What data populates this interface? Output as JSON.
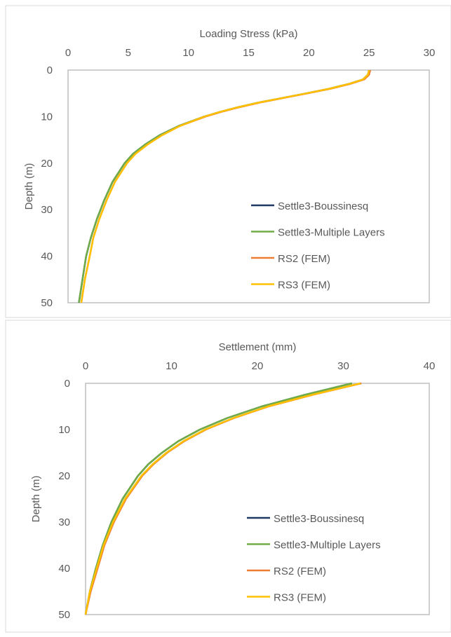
{
  "chart_data": [
    {
      "type": "line",
      "xlabel": "Loading Stress (kPa)",
      "ylabel": "Depth (m)",
      "xlim": [
        0,
        30
      ],
      "ylim": [
        0,
        50
      ],
      "y_inverted": true,
      "x_axis_position": "top",
      "xticks": [
        "0",
        "5",
        "10",
        "15",
        "20",
        "25",
        "30"
      ],
      "yticks": [
        "0",
        "10",
        "20",
        "30",
        "40",
        "50"
      ],
      "grid": false,
      "legend_position": "bottom-right",
      "series": [
        {
          "name": "Settle3-Boussinesq",
          "color": "#1f3864",
          "points": [
            [
              25,
              0
            ],
            [
              24.9,
              1
            ],
            [
              24.5,
              2
            ],
            [
              23.3,
              3
            ],
            [
              21.7,
              4
            ],
            [
              19.8,
              5
            ],
            [
              17.8,
              6
            ],
            [
              15.8,
              7
            ],
            [
              14.1,
              8
            ],
            [
              12.6,
              9
            ],
            [
              11.3,
              10
            ],
            [
              9.2,
              12
            ],
            [
              7.6,
              14
            ],
            [
              6.4,
              16
            ],
            [
              5.4,
              18
            ],
            [
              4.7,
              20
            ],
            [
              3.7,
              24
            ],
            [
              3.0,
              28
            ],
            [
              2.4,
              32
            ],
            [
              1.9,
              36
            ],
            [
              1.5,
              40
            ],
            [
              1.2,
              45
            ],
            [
              0.9,
              50
            ]
          ]
        },
        {
          "name": "Settle3-Multiple Layers",
          "color": "#70ad47",
          "points": [
            [
              25,
              0
            ],
            [
              24.9,
              1
            ],
            [
              24.5,
              2
            ],
            [
              23.3,
              3
            ],
            [
              21.7,
              4
            ],
            [
              19.8,
              5
            ],
            [
              17.8,
              6
            ],
            [
              15.8,
              7
            ],
            [
              14.1,
              8
            ],
            [
              12.6,
              9
            ],
            [
              11.3,
              10
            ],
            [
              9.2,
              12
            ],
            [
              7.6,
              14
            ],
            [
              6.4,
              16
            ],
            [
              5.4,
              18
            ],
            [
              4.7,
              20
            ],
            [
              3.7,
              24
            ],
            [
              3.0,
              28
            ],
            [
              2.4,
              32
            ],
            [
              1.9,
              36
            ],
            [
              1.5,
              40
            ],
            [
              1.2,
              45
            ],
            [
              0.9,
              50
            ]
          ]
        },
        {
          "name": "RS2 (FEM)",
          "color": "#ed7d31",
          "points": [
            [
              25.1,
              0
            ],
            [
              25.0,
              1
            ],
            [
              24.6,
              2
            ],
            [
              23.4,
              3
            ],
            [
              21.8,
              4
            ],
            [
              19.9,
              5
            ],
            [
              17.9,
              6
            ],
            [
              15.9,
              7
            ],
            [
              14.2,
              8
            ],
            [
              12.7,
              9
            ],
            [
              11.4,
              10
            ],
            [
              9.3,
              12
            ],
            [
              7.8,
              14
            ],
            [
              6.6,
              16
            ],
            [
              5.6,
              18
            ],
            [
              4.9,
              20
            ],
            [
              3.9,
              24
            ],
            [
              3.2,
              28
            ],
            [
              2.6,
              32
            ],
            [
              2.1,
              36
            ],
            [
              1.8,
              40
            ],
            [
              1.4,
              45
            ],
            [
              1.1,
              50
            ]
          ]
        },
        {
          "name": "RS3 (FEM)",
          "color": "#ffc000",
          "points": [
            [
              25,
              0
            ],
            [
              24.9,
              1
            ],
            [
              24.5,
              2
            ],
            [
              23.3,
              3
            ],
            [
              21.7,
              4
            ],
            [
              19.8,
              5
            ],
            [
              17.8,
              6
            ],
            [
              15.8,
              7
            ],
            [
              14.1,
              8
            ],
            [
              12.6,
              9
            ],
            [
              11.3,
              10
            ],
            [
              9.3,
              12
            ],
            [
              7.8,
              14
            ],
            [
              6.6,
              16
            ],
            [
              5.6,
              18
            ],
            [
              4.9,
              20
            ],
            [
              3.9,
              24
            ],
            [
              3.2,
              28
            ],
            [
              2.6,
              32
            ],
            [
              2.1,
              36
            ],
            [
              1.8,
              40
            ],
            [
              1.4,
              45
            ],
            [
              1.1,
              50
            ]
          ]
        }
      ]
    },
    {
      "type": "line",
      "xlabel": "Settlement (mm)",
      "ylabel": "Depth (m)",
      "xlim": [
        0,
        40
      ],
      "ylim": [
        0,
        50
      ],
      "y_inverted": true,
      "x_axis_position": "top",
      "xticks": [
        "0",
        "10",
        "20",
        "30",
        "40"
      ],
      "yticks": [
        "0",
        "10",
        "20",
        "30",
        "40",
        "50"
      ],
      "grid": false,
      "legend_position": "bottom-right",
      "series": [
        {
          "name": "Settle3-Boussinesq",
          "color": "#1f3864",
          "points": [
            [
              31,
              0
            ],
            [
              25.5,
              2.5
            ],
            [
              20.5,
              5
            ],
            [
              16.5,
              7.5
            ],
            [
              13.3,
              10
            ],
            [
              10.8,
              12.5
            ],
            [
              8.9,
              15
            ],
            [
              7.3,
              17.5
            ],
            [
              6.1,
              20
            ],
            [
              4.3,
              25
            ],
            [
              3.0,
              30
            ],
            [
              2.0,
              35
            ],
            [
              1.2,
              40
            ],
            [
              0.5,
              45
            ],
            [
              0,
              50
            ]
          ]
        },
        {
          "name": "Settle3-Multiple Layers",
          "color": "#70ad47",
          "points": [
            [
              31,
              0
            ],
            [
              25.5,
              2.5
            ],
            [
              20.5,
              5
            ],
            [
              16.5,
              7.5
            ],
            [
              13.3,
              10
            ],
            [
              10.8,
              12.5
            ],
            [
              8.9,
              15
            ],
            [
              7.3,
              17.5
            ],
            [
              6.1,
              20
            ],
            [
              4.3,
              25
            ],
            [
              3.0,
              30
            ],
            [
              2.0,
              35
            ],
            [
              1.2,
              40
            ],
            [
              0.5,
              45
            ],
            [
              0,
              50
            ]
          ]
        },
        {
          "name": "RS2 (FEM)",
          "color": "#ed7d31",
          "points": [
            [
              32.1,
              0
            ],
            [
              26.4,
              2.5
            ],
            [
              21.3,
              5
            ],
            [
              17.3,
              7.5
            ],
            [
              14.0,
              10
            ],
            [
              11.5,
              12.5
            ],
            [
              9.5,
              15
            ],
            [
              7.9,
              17.5
            ],
            [
              6.6,
              20
            ],
            [
              4.7,
              25
            ],
            [
              3.3,
              30
            ],
            [
              2.2,
              35
            ],
            [
              1.4,
              40
            ],
            [
              0.6,
              45
            ],
            [
              0,
              50
            ]
          ]
        },
        {
          "name": "RS3 (FEM)",
          "color": "#ffc000",
          "points": [
            [
              32,
              0
            ],
            [
              26.3,
              2.5
            ],
            [
              21.2,
              5
            ],
            [
              17.2,
              7.5
            ],
            [
              13.9,
              10
            ],
            [
              11.4,
              12.5
            ],
            [
              9.4,
              15
            ],
            [
              7.8,
              17.5
            ],
            [
              6.5,
              20
            ],
            [
              4.6,
              25
            ],
            [
              3.2,
              30
            ],
            [
              2.1,
              35
            ],
            [
              1.3,
              40
            ],
            [
              0.5,
              45
            ],
            [
              0,
              50
            ]
          ]
        }
      ]
    }
  ]
}
